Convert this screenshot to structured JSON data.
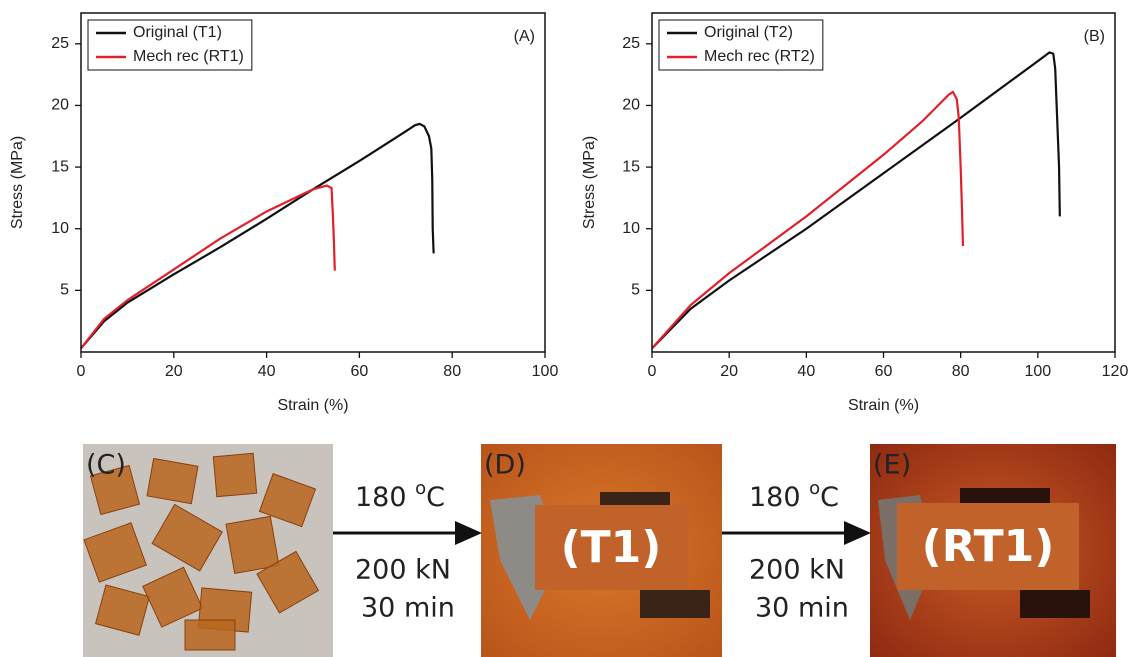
{
  "chart_data": [
    {
      "type": "line",
      "panel": "(A)",
      "xlabel": "Strain (%)",
      "ylabel": "Stress (MPa)",
      "xlim": [
        0,
        100
      ],
      "xticks": [
        0,
        20,
        40,
        60,
        80,
        100
      ],
      "ylim": [
        0,
        27.5
      ],
      "yticks": [
        5,
        10,
        15,
        20,
        25
      ],
      "legend": "upper left",
      "series": [
        {
          "name": "Original (T1)",
          "color": "#111111",
          "x": [
            0,
            5,
            10,
            20,
            30,
            40,
            50,
            60,
            70,
            72,
            73,
            74,
            75,
            75.5,
            75.7,
            75.8,
            76
          ],
          "values": [
            0.3,
            2.5,
            4,
            6.3,
            8.5,
            10.8,
            13.2,
            15.5,
            17.9,
            18.4,
            18.5,
            18.3,
            17.5,
            16.5,
            14,
            10,
            8
          ]
        },
        {
          "name": "Mech rec (RT1)",
          "color": "#e0202a",
          "x": [
            0,
            5,
            10,
            20,
            30,
            40,
            50,
            53,
            54,
            54.3,
            54.5,
            54.7
          ],
          "values": [
            0.3,
            2.7,
            4.2,
            6.7,
            9.2,
            11.4,
            13.2,
            13.5,
            13.3,
            11,
            9,
            6.6
          ]
        }
      ]
    },
    {
      "type": "line",
      "panel": "(B)",
      "xlabel": "Strain (%)",
      "ylabel": "Stress (MPa)",
      "xlim": [
        0,
        120
      ],
      "xticks": [
        0,
        20,
        40,
        60,
        80,
        100,
        120
      ],
      "ylim": [
        0,
        27.5
      ],
      "yticks": [
        5,
        10,
        15,
        20,
        25
      ],
      "legend": "upper left",
      "series": [
        {
          "name": "Original (T2)",
          "color": "#111111",
          "x": [
            0,
            10,
            20,
            40,
            60,
            80,
            100,
            103,
            104,
            104.5,
            105,
            105.5,
            105.7
          ],
          "values": [
            0.3,
            3.5,
            5.8,
            10,
            14.5,
            19,
            23.6,
            24.3,
            24.2,
            23,
            19,
            15,
            11
          ]
        },
        {
          "name": "Mech rec (RT2)",
          "color": "#e0202a",
          "x": [
            0,
            10,
            20,
            40,
            60,
            70,
            77,
            78,
            79,
            79.5,
            80,
            80.3,
            80.6
          ],
          "values": [
            0.3,
            3.8,
            6.4,
            11,
            16,
            18.7,
            20.9,
            21.1,
            20.5,
            19,
            15,
            12,
            8.6
          ]
        }
      ]
    }
  ],
  "photos": [
    {
      "label": "(C)"
    },
    {
      "label": "(D)",
      "sample": "(T1)"
    },
    {
      "label": "(E)",
      "sample": "(RT1)"
    }
  ],
  "steps": [
    {
      "temperature": "180 ",
      "degree": "o",
      "unit": "C",
      "force": "200 kN",
      "time": "30 min"
    },
    {
      "temperature": "180 ",
      "degree": "o",
      "unit": "C",
      "force": "200 kN",
      "time": "30 min"
    }
  ]
}
